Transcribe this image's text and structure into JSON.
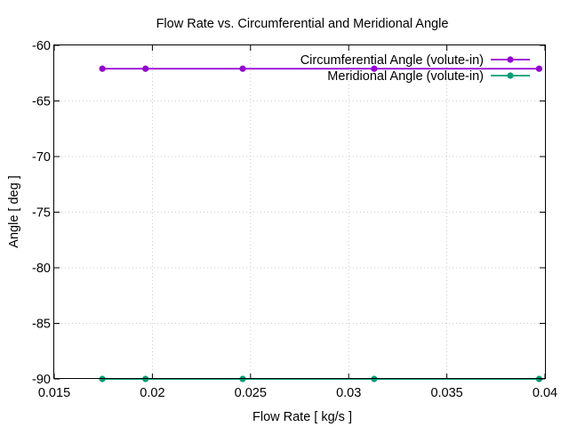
{
  "chart_data": {
    "type": "line",
    "title": "Flow Rate vs. Circumferential and Meridional Angle",
    "xlabel": "Flow Rate [ kg/s ]",
    "ylabel": "Angle [ deg ]",
    "xlim": [
      0.015,
      0.04
    ],
    "ylim": [
      -90,
      -60
    ],
    "xticks": [
      0.015,
      0.02,
      0.025,
      0.03,
      0.035,
      0.04
    ],
    "xtick_labels": [
      "0.015",
      "0.02",
      "0.025",
      "0.03",
      "0.035",
      "0.04"
    ],
    "yticks": [
      -90,
      -85,
      -80,
      -75,
      -70,
      -65,
      -60
    ],
    "ytick_labels": [
      "-90",
      "-85",
      "-80",
      "-75",
      "-70",
      "-65",
      "-60"
    ],
    "grid": true,
    "legend_position": "top-right",
    "series": [
      {
        "name": "Circumferential Angle (volute-in)",
        "color": "#9400d3",
        "x": [
          0.01745,
          0.01965,
          0.0246,
          0.0313,
          0.0397
        ],
        "y": [
          -62.1,
          -62.1,
          -62.1,
          -62.1,
          -62.1
        ]
      },
      {
        "name": "Meridional Angle (volute-in)",
        "color": "#009e73",
        "x": [
          0.01745,
          0.01965,
          0.0246,
          0.0313,
          0.0397
        ],
        "y": [
          -90.0,
          -90.0,
          -90.0,
          -90.0,
          -90.0
        ]
      }
    ]
  }
}
